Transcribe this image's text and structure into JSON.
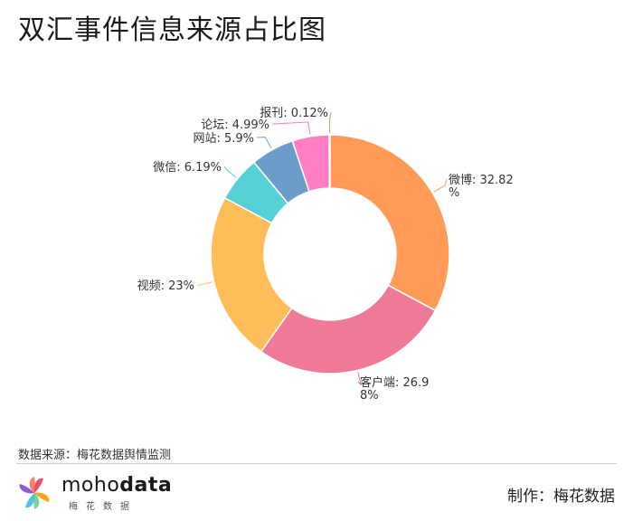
{
  "page": {
    "title": "双汇事件信息来源占比图",
    "source": "数据来源：梅花数据舆情监测",
    "maker": "制作：梅花数据",
    "brand_latin_a": "moho",
    "brand_latin_b": "data",
    "brand_cn": "梅花数据"
  },
  "chart_data": {
    "type": "pie",
    "variant": "donut",
    "title": "双汇事件信息来源占比图",
    "unit": "%",
    "slices": [
      {
        "label": "微博",
        "value": 32.82,
        "color": "#FF9A57",
        "text": "微博: 32.82",
        "text2": "%"
      },
      {
        "label": "客户端",
        "value": 26.98,
        "color": "#EE7A98",
        "text": "客户端: 26.9",
        "text2": "8%"
      },
      {
        "label": "视频",
        "value": 23,
        "color": "#FFBD5A",
        "text": "视频: 23%",
        "text2": ""
      },
      {
        "label": "微信",
        "value": 6.19,
        "color": "#56D0D4",
        "text": "微信: 6.19%",
        "text2": ""
      },
      {
        "label": "网站",
        "value": 5.9,
        "color": "#6A9DC9",
        "text": "网站: 5.9%",
        "text2": ""
      },
      {
        "label": "论坛",
        "value": 4.99,
        "color": "#FF7EC4",
        "text": "论坛: 4.99%",
        "text2": ""
      },
      {
        "label": "报刊",
        "value": 0.12,
        "color": "#8DBF6A",
        "text": "报刊: 0.12%",
        "text2": ""
      }
    ]
  }
}
